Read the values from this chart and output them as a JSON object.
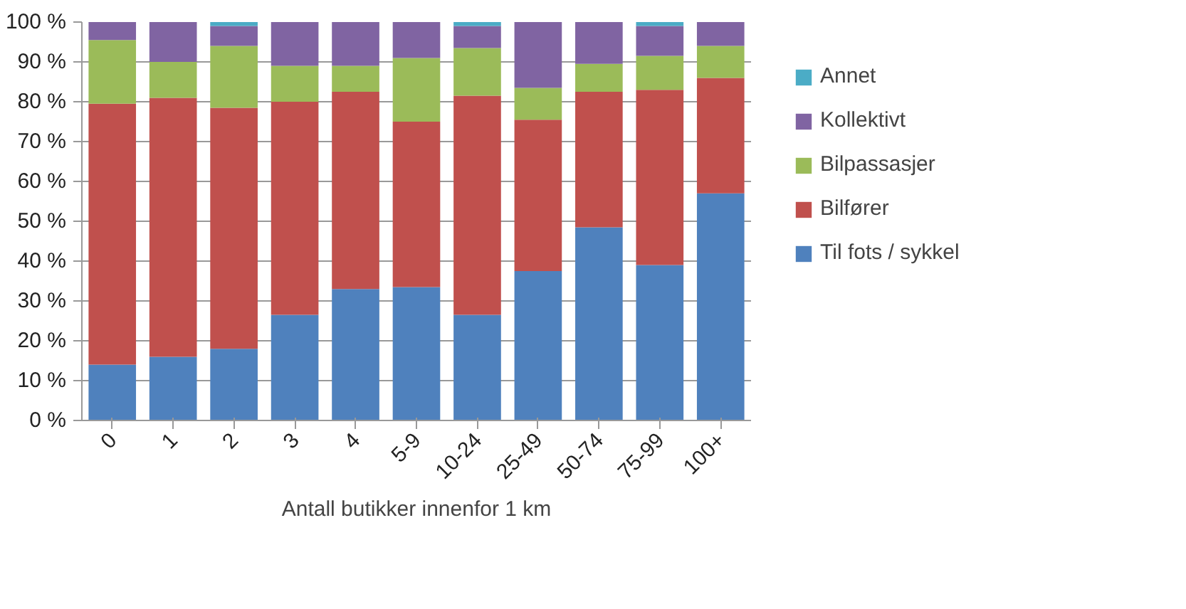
{
  "chart_data": {
    "type": "bar",
    "stacked": true,
    "xlabel": "Antall butikker innenfor 1 km",
    "categories": [
      "0",
      "1",
      "2",
      "3",
      "4",
      "5-9",
      "10-24",
      "25-49",
      "50-74",
      "75-99",
      "100+"
    ],
    "series": [
      {
        "name": "Til fots / sykkel",
        "color": "#4f81bd",
        "values": [
          14,
          16,
          18,
          26.5,
          33,
          33.5,
          26.5,
          37.5,
          48.5,
          39,
          57
        ]
      },
      {
        "name": "Bilfører",
        "color": "#c0504d",
        "values": [
          65.5,
          65,
          60.5,
          53.5,
          49.5,
          41.5,
          55,
          38,
          34,
          44,
          29
        ]
      },
      {
        "name": "Bilpassasjer",
        "color": "#9bbb59",
        "values": [
          16,
          9,
          15.5,
          9,
          6.5,
          16,
          12,
          8,
          7,
          8.5,
          8
        ]
      },
      {
        "name": "Kollektivt",
        "color": "#8064a2",
        "values": [
          4.5,
          10,
          5,
          11,
          11,
          9,
          5.5,
          16.5,
          10.5,
          7.5,
          6
        ]
      },
      {
        "name": "Annet",
        "color": "#4bacc6",
        "values": [
          0,
          0,
          1,
          0,
          0,
          0,
          1,
          0,
          0,
          1,
          0
        ]
      }
    ],
    "ylim": [
      0,
      100
    ],
    "yticks": [
      {
        "value": 0,
        "label": "0 %"
      },
      {
        "value": 10,
        "label": "10 %"
      },
      {
        "value": 20,
        "label": "20 %"
      },
      {
        "value": 30,
        "label": "30 %"
      },
      {
        "value": 40,
        "label": "40 %"
      },
      {
        "value": 50,
        "label": "50 %"
      },
      {
        "value": 60,
        "label": "60 %"
      },
      {
        "value": 70,
        "label": "70 %"
      },
      {
        "value": 80,
        "label": "80 %"
      },
      {
        "value": 90,
        "label": "90 %"
      },
      {
        "value": 100,
        "label": "100 %"
      }
    ],
    "grid": "y",
    "legend": "right"
  }
}
